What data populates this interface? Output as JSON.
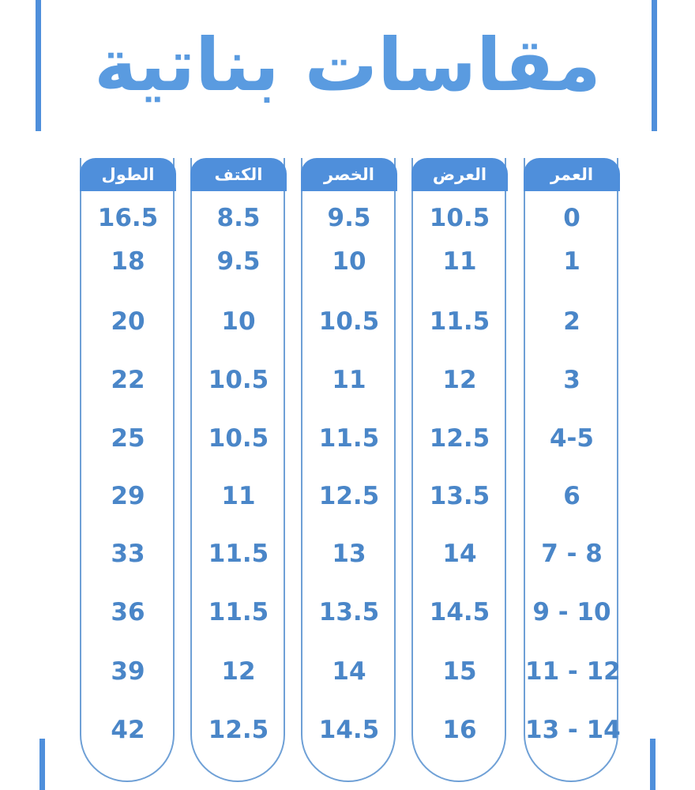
{
  "title": "مقاسات بناتية",
  "accent_color": "#4f8fdb",
  "columns": [
    {
      "header": "الطول",
      "values": [
        "16.5",
        "18",
        "20",
        "22",
        "25",
        "29",
        "33",
        "36",
        "39",
        "42"
      ]
    },
    {
      "header": "الكتف",
      "values": [
        "8.5",
        "9.5",
        "10",
        "10.5",
        "10.5",
        "11",
        "11.5",
        "11.5",
        "12",
        "12.5"
      ]
    },
    {
      "header": "الخصر",
      "values": [
        "9.5",
        "10",
        "10.5",
        "11",
        "11.5",
        "12.5",
        "13",
        "13.5",
        "14",
        "14.5"
      ]
    },
    {
      "header": "العرض",
      "values": [
        "10.5",
        "11",
        "11.5",
        "12",
        "12.5",
        "13.5",
        "14",
        "14.5",
        "15",
        "16"
      ]
    },
    {
      "header": "العمر",
      "values": [
        "0",
        "1",
        "2",
        "3",
        "4-5",
        "6",
        "7 - 8",
        "9 - 10",
        "11 - 12",
        "13 - 14"
      ]
    }
  ]
}
